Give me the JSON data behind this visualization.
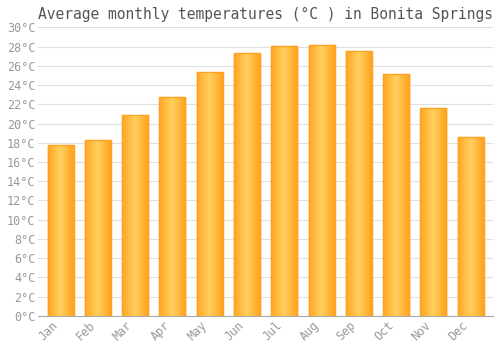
{
  "title": "Average monthly temperatures (°C ) in Bonita Springs",
  "months": [
    "Jan",
    "Feb",
    "Mar",
    "Apr",
    "May",
    "Jun",
    "Jul",
    "Aug",
    "Sep",
    "Oct",
    "Nov",
    "Dec"
  ],
  "values": [
    17.8,
    18.3,
    20.9,
    22.8,
    25.4,
    27.3,
    28.1,
    28.2,
    27.5,
    25.1,
    21.6,
    18.6
  ],
  "bar_color_center": "#FFD060",
  "bar_color_edge": "#FFA500",
  "background_color": "#FFFFFF",
  "plot_bg_color": "#FFFFFF",
  "ylim": [
    0,
    30
  ],
  "ytick_step": 2,
  "title_fontsize": 10.5,
  "tick_fontsize": 8.5,
  "grid_color": "#E0E0E0",
  "tick_color": "#999999",
  "title_color": "#555555"
}
